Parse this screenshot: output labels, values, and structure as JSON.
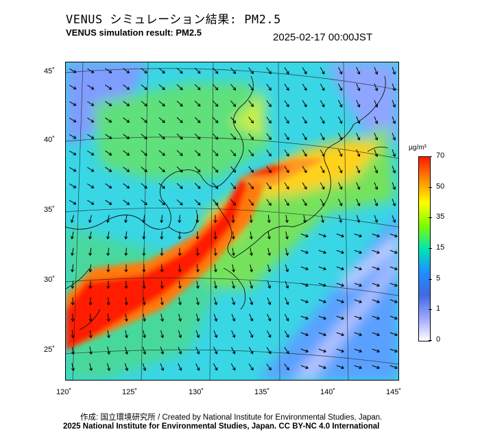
{
  "header": {
    "title_jp": "VENUS シミュレーション結果: PM2.5",
    "title_en": "VENUS simulation result: PM2.5",
    "timestamp": "2025-02-17 00:00JST"
  },
  "map": {
    "lon_ticks": [
      "120˚",
      "125˚",
      "130˚",
      "135˚",
      "140˚",
      "145˚"
    ],
    "lat_ticks": [
      "45˚",
      "40˚",
      "35˚",
      "30˚",
      "25˚"
    ],
    "lon_range": [
      120,
      145
    ],
    "lat_range": [
      23,
      46
    ]
  },
  "colorbar": {
    "unit": "µg/m³",
    "labels": [
      "70",
      "50",
      "35",
      "15",
      "5",
      "1",
      "0"
    ],
    "colors": [
      "#ff1a00",
      "#ff8c00",
      "#ffff00",
      "#7cfc00",
      "#00e6b4",
      "#1e90ff",
      "#4169e1",
      "#9aa6ff",
      "#ffffff"
    ]
  },
  "footer": {
    "credit_jp": "作成: 国立環境研究所 / Created by National Institute for Environmental Studies, Japan.",
    "license": "2025 National Institute for Environmental Studies, Japan. CC BY-NC 4.0 International"
  }
}
